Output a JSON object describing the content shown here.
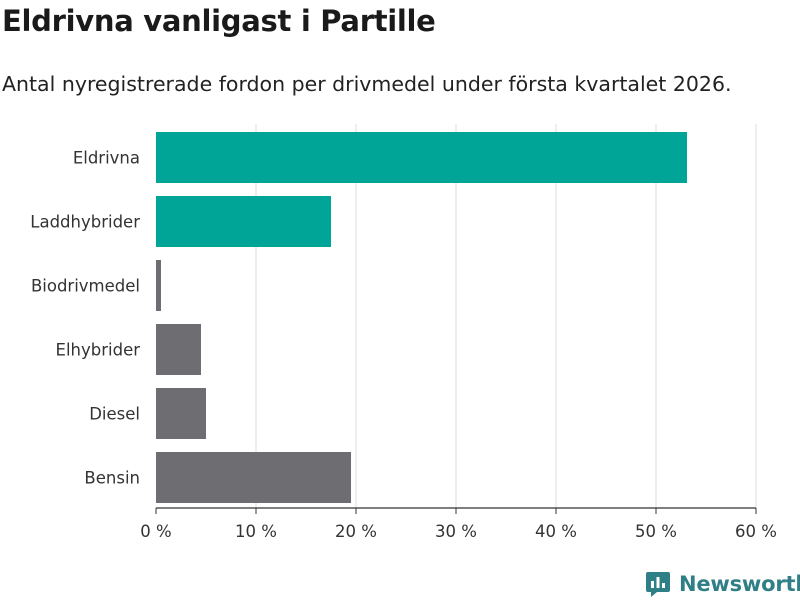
{
  "header": {
    "title": "Eldrivna vanligast i Partille",
    "subtitle": "Antal nyregistrerade fordon per drivmedel under första kvartalet 2026."
  },
  "brand": {
    "name": "Newsworthy",
    "color": "#2f7f86"
  },
  "colors": {
    "highlight": "#00a598",
    "default": "#6e6d72",
    "grid": "#dddddd",
    "axis": "#333333"
  },
  "chart_data": {
    "type": "bar",
    "orientation": "horizontal",
    "title": "Eldrivna vanligast i Partille",
    "subtitle": "Antal nyregistrerade fordon per drivmedel under första kvartalet 2026.",
    "xlabel": "",
    "ylabel": "",
    "categories": [
      "Eldrivna",
      "Laddhybrider",
      "Biodrivmedel",
      "Elhybrider",
      "Diesel",
      "Bensin"
    ],
    "values": [
      53.1,
      17.5,
      0.5,
      4.5,
      5.0,
      19.5
    ],
    "highlighted": [
      true,
      true,
      false,
      false,
      false,
      false
    ],
    "xlim": [
      0,
      60
    ],
    "ticks": [
      0,
      10,
      20,
      30,
      40,
      50,
      60
    ],
    "tick_labels": [
      "0 %",
      "10 %",
      "20 %",
      "30 %",
      "40 %",
      "50 %",
      "60 %"
    ],
    "grid": true
  }
}
